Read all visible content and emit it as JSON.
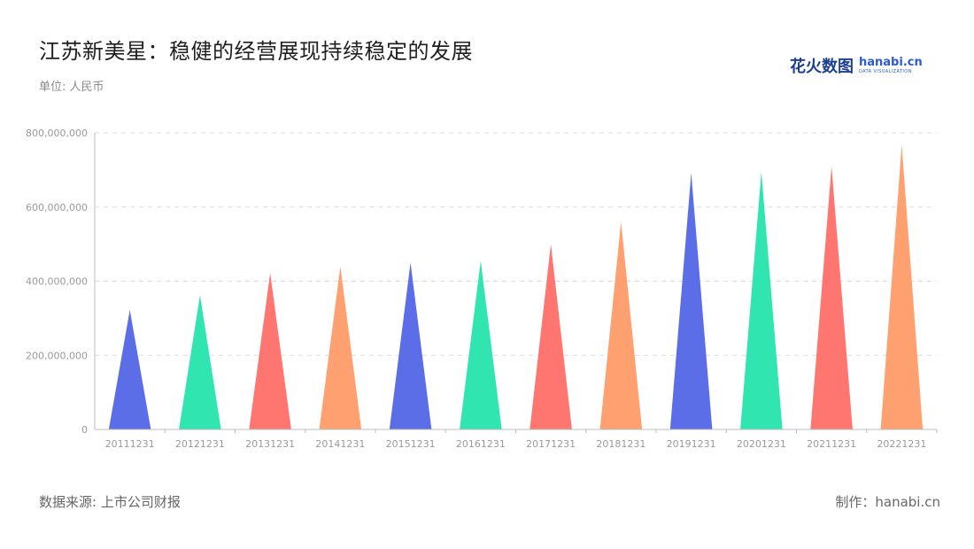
{
  "header": {
    "title": "江苏新美星：稳健的经营展现持续稳定的发展",
    "unit": "单位: 人民币"
  },
  "logo": {
    "cn": "花火数图",
    "en": "hanabi.cn",
    "sub": "DATA VISUALIZATION"
  },
  "footer": {
    "source": "数据来源: 上市公司财报",
    "credit": "制作：hanabi.cn"
  },
  "colors": {
    "blue": "#5b6ee8",
    "green": "#31e5b1",
    "red": "#ff7670",
    "orange": "#ffa070",
    "grid": "#dddddd",
    "axis": "#bcbcbc"
  },
  "chart_data": {
    "type": "bar",
    "title": "",
    "xlabel": "",
    "ylabel": "",
    "categories": [
      "20111231",
      "20121231",
      "20131231",
      "20141231",
      "20151231",
      "20161231",
      "20171231",
      "20181231",
      "20191231",
      "20201231",
      "20211231",
      "20221231"
    ],
    "values": [
      322000000,
      362000000,
      422000000,
      440000000,
      450000000,
      455000000,
      500000000,
      560000000,
      692000000,
      695000000,
      710000000,
      768000000
    ],
    "ylim": [
      0,
      800000000
    ],
    "yticks": [
      0,
      200000000,
      400000000,
      600000000,
      800000000
    ],
    "ytick_labels": [
      "0",
      "200,000,000",
      "400,000,000",
      "600,000,000",
      "800,000,000"
    ],
    "grid": true,
    "legend": "none",
    "bar_shape": "triangle",
    "bar_colors": [
      "#5b6ee8",
      "#31e5b1",
      "#ff7670",
      "#ffa070",
      "#5b6ee8",
      "#31e5b1",
      "#ff7670",
      "#ffa070",
      "#5b6ee8",
      "#31e5b1",
      "#ff7670",
      "#ffa070"
    ]
  }
}
